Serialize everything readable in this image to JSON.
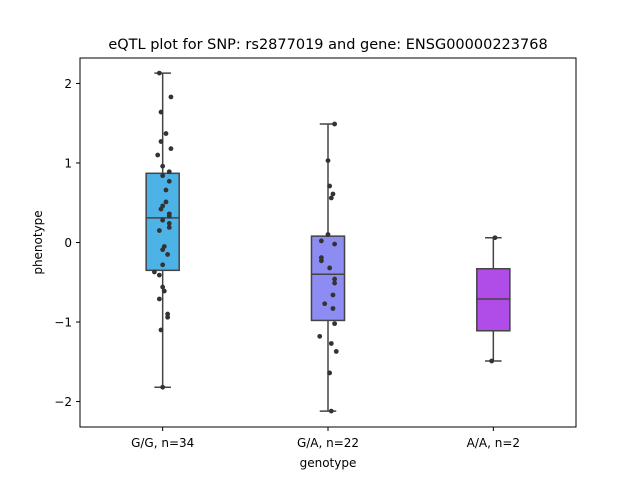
{
  "chart_data": {
    "type": "box",
    "title": "eQTL plot for SNP: rs2877019 and gene: ENSG00000223768",
    "xlabel": "genotype",
    "ylabel": "phenotype",
    "ylim": [
      -2.32,
      2.32
    ],
    "yticks": [
      -2,
      -1,
      0,
      1,
      2
    ],
    "grid": false,
    "categories": [
      "G/G, n=34",
      "G/A, n=22",
      "A/A, n=2"
    ],
    "boxes": [
      {
        "category": "G/G, n=34",
        "color": "#4DB3E6",
        "whisker_low": -1.82,
        "q1": -0.35,
        "median": 0.31,
        "q3": 0.87,
        "whisker_high": 2.13,
        "points": [
          {
            "dx": -0.02,
            "y": 2.13
          },
          {
            "dx": 0.05,
            "y": 1.83
          },
          {
            "dx": -0.01,
            "y": 1.64
          },
          {
            "dx": 0.02,
            "y": 1.37
          },
          {
            "dx": -0.01,
            "y": 1.27
          },
          {
            "dx": 0.05,
            "y": 1.18
          },
          {
            "dx": -0.03,
            "y": 1.1
          },
          {
            "dx": 0.0,
            "y": 0.96
          },
          {
            "dx": 0.04,
            "y": 0.89
          },
          {
            "dx": 0.0,
            "y": 0.84
          },
          {
            "dx": 0.04,
            "y": 0.77
          },
          {
            "dx": 0.02,
            "y": 0.66
          },
          {
            "dx": 0.02,
            "y": 0.51
          },
          {
            "dx": 0.0,
            "y": 0.46
          },
          {
            "dx": -0.01,
            "y": 0.42
          },
          {
            "dx": 0.04,
            "y": 0.36
          },
          {
            "dx": 0.04,
            "y": 0.33
          },
          {
            "dx": 0.0,
            "y": 0.28
          },
          {
            "dx": 0.04,
            "y": 0.24
          },
          {
            "dx": -0.02,
            "y": 0.15
          },
          {
            "dx": 0.04,
            "y": 0.19
          },
          {
            "dx": 0.01,
            "y": -0.05
          },
          {
            "dx": 0.0,
            "y": -0.09
          },
          {
            "dx": 0.03,
            "y": -0.15
          },
          {
            "dx": 0.0,
            "y": -0.28
          },
          {
            "dx": -0.05,
            "y": -0.37
          },
          {
            "dx": -0.02,
            "y": -0.41
          },
          {
            "dx": 0.0,
            "y": -0.56
          },
          {
            "dx": 0.01,
            "y": -0.61
          },
          {
            "dx": -0.02,
            "y": -0.71
          },
          {
            "dx": 0.03,
            "y": -0.9
          },
          {
            "dx": 0.03,
            "y": -0.94
          },
          {
            "dx": -0.01,
            "y": -1.1
          },
          {
            "dx": 0.0,
            "y": -1.82
          }
        ]
      },
      {
        "category": "G/A, n=22",
        "color": "#8C8CF2",
        "whisker_low": -2.12,
        "q1": -0.98,
        "median": -0.4,
        "q3": 0.08,
        "whisker_high": 1.49,
        "points": [
          {
            "dx": 0.04,
            "y": 1.49
          },
          {
            "dx": 0.0,
            "y": 1.03
          },
          {
            "dx": 0.01,
            "y": 0.71
          },
          {
            "dx": 0.03,
            "y": 0.61
          },
          {
            "dx": 0.02,
            "y": 0.56
          },
          {
            "dx": 0.0,
            "y": 0.1
          },
          {
            "dx": -0.04,
            "y": 0.02
          },
          {
            "dx": 0.04,
            "y": -0.02
          },
          {
            "dx": -0.04,
            "y": -0.19
          },
          {
            "dx": -0.04,
            "y": -0.23
          },
          {
            "dx": 0.01,
            "y": -0.32
          },
          {
            "dx": 0.04,
            "y": -0.46
          },
          {
            "dx": 0.04,
            "y": -0.51
          },
          {
            "dx": 0.03,
            "y": -0.66
          },
          {
            "dx": -0.02,
            "y": -0.77
          },
          {
            "dx": 0.03,
            "y": -0.83
          },
          {
            "dx": 0.04,
            "y": -1.02
          },
          {
            "dx": -0.05,
            "y": -1.18
          },
          {
            "dx": 0.02,
            "y": -1.27
          },
          {
            "dx": 0.05,
            "y": -1.37
          },
          {
            "dx": 0.01,
            "y": -1.64
          },
          {
            "dx": 0.02,
            "y": -2.12
          }
        ]
      },
      {
        "category": "A/A, n=2",
        "color": "#B04DE8",
        "whisker_low": -1.49,
        "q1": -1.11,
        "median": -0.71,
        "q3": -0.33,
        "whisker_high": 0.06,
        "points": [
          {
            "dx": 0.01,
            "y": 0.06
          },
          {
            "dx": -0.01,
            "y": -1.49
          }
        ]
      }
    ]
  }
}
